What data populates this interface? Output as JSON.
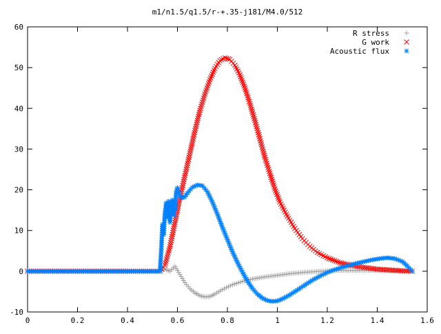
{
  "chart_data": {
    "type": "scatter",
    "title": "m1/n1.5/q1.5/r-+.35-j181/M4.0/512",
    "xlabel": "",
    "ylabel": "",
    "xlim": [
      0,
      1.6
    ],
    "ylim": [
      -10,
      60
    ],
    "x_ticks": [
      "0",
      "0.2",
      "0.4",
      "0.6",
      "0.8",
      "1",
      "1.2",
      "1.4",
      "1.6"
    ],
    "y_ticks": [
      "-10",
      "0",
      "10",
      "20",
      "30",
      "40",
      "50",
      "60"
    ],
    "grid": false,
    "legend_position": "top-right",
    "series": [
      {
        "name": "R stress",
        "marker": "plus",
        "color": "#a0a0a0",
        "points": [
          [
            0.0,
            0.0
          ],
          [
            0.1,
            0.0
          ],
          [
            0.2,
            0.0
          ],
          [
            0.3,
            0.0
          ],
          [
            0.4,
            0.0
          ],
          [
            0.53,
            0.0
          ],
          [
            0.55,
            0.5
          ],
          [
            0.57,
            0.0
          ],
          [
            0.59,
            1.2
          ],
          [
            0.61,
            -0.8
          ],
          [
            0.63,
            -2.8
          ],
          [
            0.65,
            -4.3
          ],
          [
            0.67,
            -5.3
          ],
          [
            0.69,
            -6.0
          ],
          [
            0.71,
            -6.3
          ],
          [
            0.73,
            -6.2
          ],
          [
            0.75,
            -5.6
          ],
          [
            0.78,
            -4.5
          ],
          [
            0.82,
            -3.3
          ],
          [
            0.86,
            -2.5
          ],
          [
            0.9,
            -1.9
          ],
          [
            0.95,
            -1.4
          ],
          [
            1.0,
            -1.0
          ],
          [
            1.05,
            -0.6
          ],
          [
            1.1,
            -0.3
          ],
          [
            1.15,
            -0.1
          ],
          [
            1.2,
            0.1
          ],
          [
            1.25,
            0.2
          ],
          [
            1.3,
            0.2
          ],
          [
            1.35,
            0.2
          ],
          [
            1.4,
            0.2
          ],
          [
            1.45,
            0.1
          ],
          [
            1.5,
            0.1
          ],
          [
            1.54,
            0.0
          ]
        ]
      },
      {
        "name": "G work",
        "marker": "cross",
        "color": "#ff0000",
        "points": [
          [
            0.0,
            0.0
          ],
          [
            0.1,
            0.0
          ],
          [
            0.2,
            0.0
          ],
          [
            0.3,
            0.0
          ],
          [
            0.4,
            0.0
          ],
          [
            0.53,
            0.0
          ],
          [
            0.55,
            1.5
          ],
          [
            0.57,
            6.0
          ],
          [
            0.59,
            12.0
          ],
          [
            0.61,
            18.0
          ],
          [
            0.63,
            23.5
          ],
          [
            0.65,
            29.0
          ],
          [
            0.67,
            34.5
          ],
          [
            0.69,
            39.5
          ],
          [
            0.71,
            43.5
          ],
          [
            0.73,
            47.0
          ],
          [
            0.75,
            49.8
          ],
          [
            0.77,
            51.7
          ],
          [
            0.79,
            52.4
          ],
          [
            0.81,
            52.0
          ],
          [
            0.83,
            50.6
          ],
          [
            0.85,
            48.2
          ],
          [
            0.87,
            45.0
          ],
          [
            0.89,
            41.2
          ],
          [
            0.91,
            37.0
          ],
          [
            0.93,
            32.5
          ],
          [
            0.95,
            28.0
          ],
          [
            0.97,
            24.0
          ],
          [
            0.99,
            20.2
          ],
          [
            1.01,
            17.0
          ],
          [
            1.04,
            13.5
          ],
          [
            1.07,
            10.5
          ],
          [
            1.1,
            8.0
          ],
          [
            1.13,
            6.1
          ],
          [
            1.16,
            4.6
          ],
          [
            1.2,
            3.3
          ],
          [
            1.25,
            2.1
          ],
          [
            1.3,
            1.4
          ],
          [
            1.35,
            0.9
          ],
          [
            1.4,
            0.5
          ],
          [
            1.45,
            0.3
          ],
          [
            1.5,
            0.1
          ],
          [
            1.54,
            0.0
          ]
        ]
      },
      {
        "name": "Acoustic flux",
        "marker": "star",
        "color": "#0080ff",
        "points": [
          [
            0.0,
            0.0
          ],
          [
            0.1,
            0.0
          ],
          [
            0.2,
            0.0
          ],
          [
            0.3,
            0.0
          ],
          [
            0.4,
            0.0
          ],
          [
            0.53,
            0.0
          ],
          [
            0.535,
            5.0
          ],
          [
            0.54,
            11.5
          ],
          [
            0.545,
            9.0
          ],
          [
            0.55,
            14.5
          ],
          [
            0.555,
            16.8
          ],
          [
            0.56,
            13.2
          ],
          [
            0.565,
            17.2
          ],
          [
            0.57,
            12.0
          ],
          [
            0.575,
            15.5
          ],
          [
            0.58,
            17.5
          ],
          [
            0.585,
            13.8
          ],
          [
            0.59,
            15.0
          ],
          [
            0.595,
            19.5
          ],
          [
            0.6,
            20.5
          ],
          [
            0.61,
            18.5
          ],
          [
            0.62,
            18.0
          ],
          [
            0.63,
            18.3
          ],
          [
            0.64,
            19.2
          ],
          [
            0.66,
            20.6
          ],
          [
            0.68,
            21.2
          ],
          [
            0.7,
            21.0
          ],
          [
            0.72,
            19.5
          ],
          [
            0.74,
            17.0
          ],
          [
            0.76,
            14.0
          ],
          [
            0.78,
            10.8
          ],
          [
            0.8,
            7.8
          ],
          [
            0.82,
            4.8
          ],
          [
            0.84,
            2.2
          ],
          [
            0.86,
            -0.2
          ],
          [
            0.88,
            -2.4
          ],
          [
            0.9,
            -4.2
          ],
          [
            0.92,
            -5.6
          ],
          [
            0.94,
            -6.6
          ],
          [
            0.96,
            -7.2
          ],
          [
            0.98,
            -7.4
          ],
          [
            1.0,
            -7.3
          ],
          [
            1.02,
            -6.8
          ],
          [
            1.05,
            -5.8
          ],
          [
            1.08,
            -4.6
          ],
          [
            1.11,
            -3.4
          ],
          [
            1.14,
            -2.2
          ],
          [
            1.17,
            -1.2
          ],
          [
            1.2,
            -0.3
          ],
          [
            1.23,
            0.4
          ],
          [
            1.26,
            1.0
          ],
          [
            1.29,
            1.5
          ],
          [
            1.32,
            2.0
          ],
          [
            1.35,
            2.4
          ],
          [
            1.38,
            2.8
          ],
          [
            1.41,
            3.1
          ],
          [
            1.44,
            3.3
          ],
          [
            1.47,
            3.1
          ],
          [
            1.5,
            2.4
          ],
          [
            1.52,
            1.3
          ],
          [
            1.54,
            0.0
          ]
        ]
      }
    ]
  }
}
